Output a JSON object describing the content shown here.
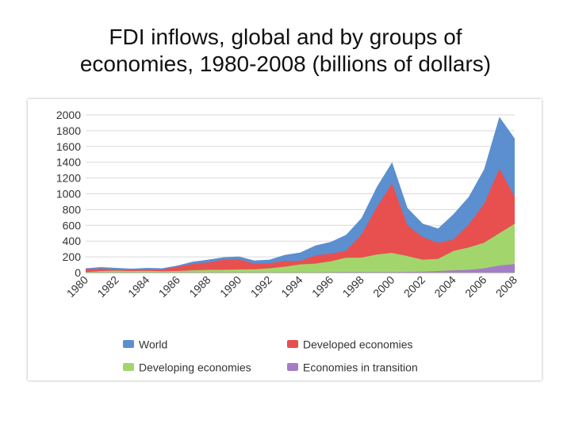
{
  "title": {
    "line1": "FDI inflows, global and by groups of",
    "line2": "economies, 1980-2008 (billions of dollars)"
  },
  "colors": {
    "World": "#5b8fd0",
    "Developed economies": "#e8504f",
    "Developing economies": "#a2d66c",
    "Economies in transition": "#a57cc8"
  },
  "chart_data": {
    "type": "area",
    "title": "FDI inflows, global and by groups of economies, 1980-2008 (billions of dollars)",
    "xlabel": "",
    "ylabel": "",
    "ylim": [
      0,
      2000
    ],
    "yticks": [
      "0",
      "200",
      "400",
      "600",
      "800",
      "1000",
      "1200",
      "1400",
      "1600",
      "1800",
      "2000"
    ],
    "xtick_labels": [
      "1980",
      "1982",
      "1984",
      "1986",
      "1988",
      "1990",
      "1992",
      "1994",
      "1996",
      "1998",
      "2000",
      "2002",
      "2004",
      "2006",
      "2008"
    ],
    "x": [
      1980,
      1981,
      1982,
      1983,
      1984,
      1985,
      1986,
      1987,
      1988,
      1989,
      1990,
      1991,
      1992,
      1993,
      1994,
      1995,
      1996,
      1997,
      1998,
      1999,
      2000,
      2001,
      2002,
      2003,
      2004,
      2005,
      2006,
      2007,
      2008
    ],
    "grid": true,
    "legend_position": "bottom",
    "series": [
      {
        "name": "World",
        "values": [
          55,
          70,
          60,
          50,
          60,
          55,
          90,
          140,
          165,
          195,
          205,
          155,
          165,
          225,
          255,
          345,
          390,
          480,
          690,
          1085,
          1400,
          820,
          620,
          560,
          740,
          960,
          1310,
          1975,
          1700
        ]
      },
      {
        "name": "Developed economies",
        "values": [
          45,
          50,
          40,
          35,
          40,
          40,
          75,
          110,
          130,
          165,
          170,
          115,
          120,
          150,
          150,
          220,
          240,
          280,
          480,
          830,
          1130,
          600,
          450,
          380,
          420,
          610,
          870,
          1320,
          960
        ]
      },
      {
        "name": "Developing economies",
        "values": [
          8,
          20,
          25,
          20,
          22,
          18,
          20,
          30,
          35,
          36,
          40,
          42,
          55,
          75,
          105,
          115,
          145,
          190,
          190,
          230,
          250,
          210,
          165,
          175,
          275,
          320,
          380,
          500,
          620
        ]
      },
      {
        "name": "Economies in transition",
        "values": [
          0,
          0,
          0,
          0,
          0,
          0,
          0,
          0,
          0,
          0,
          0,
          0,
          2,
          3,
          4,
          5,
          6,
          8,
          8,
          8,
          7,
          10,
          12,
          20,
          30,
          35,
          55,
          90,
          110
        ]
      }
    ]
  }
}
